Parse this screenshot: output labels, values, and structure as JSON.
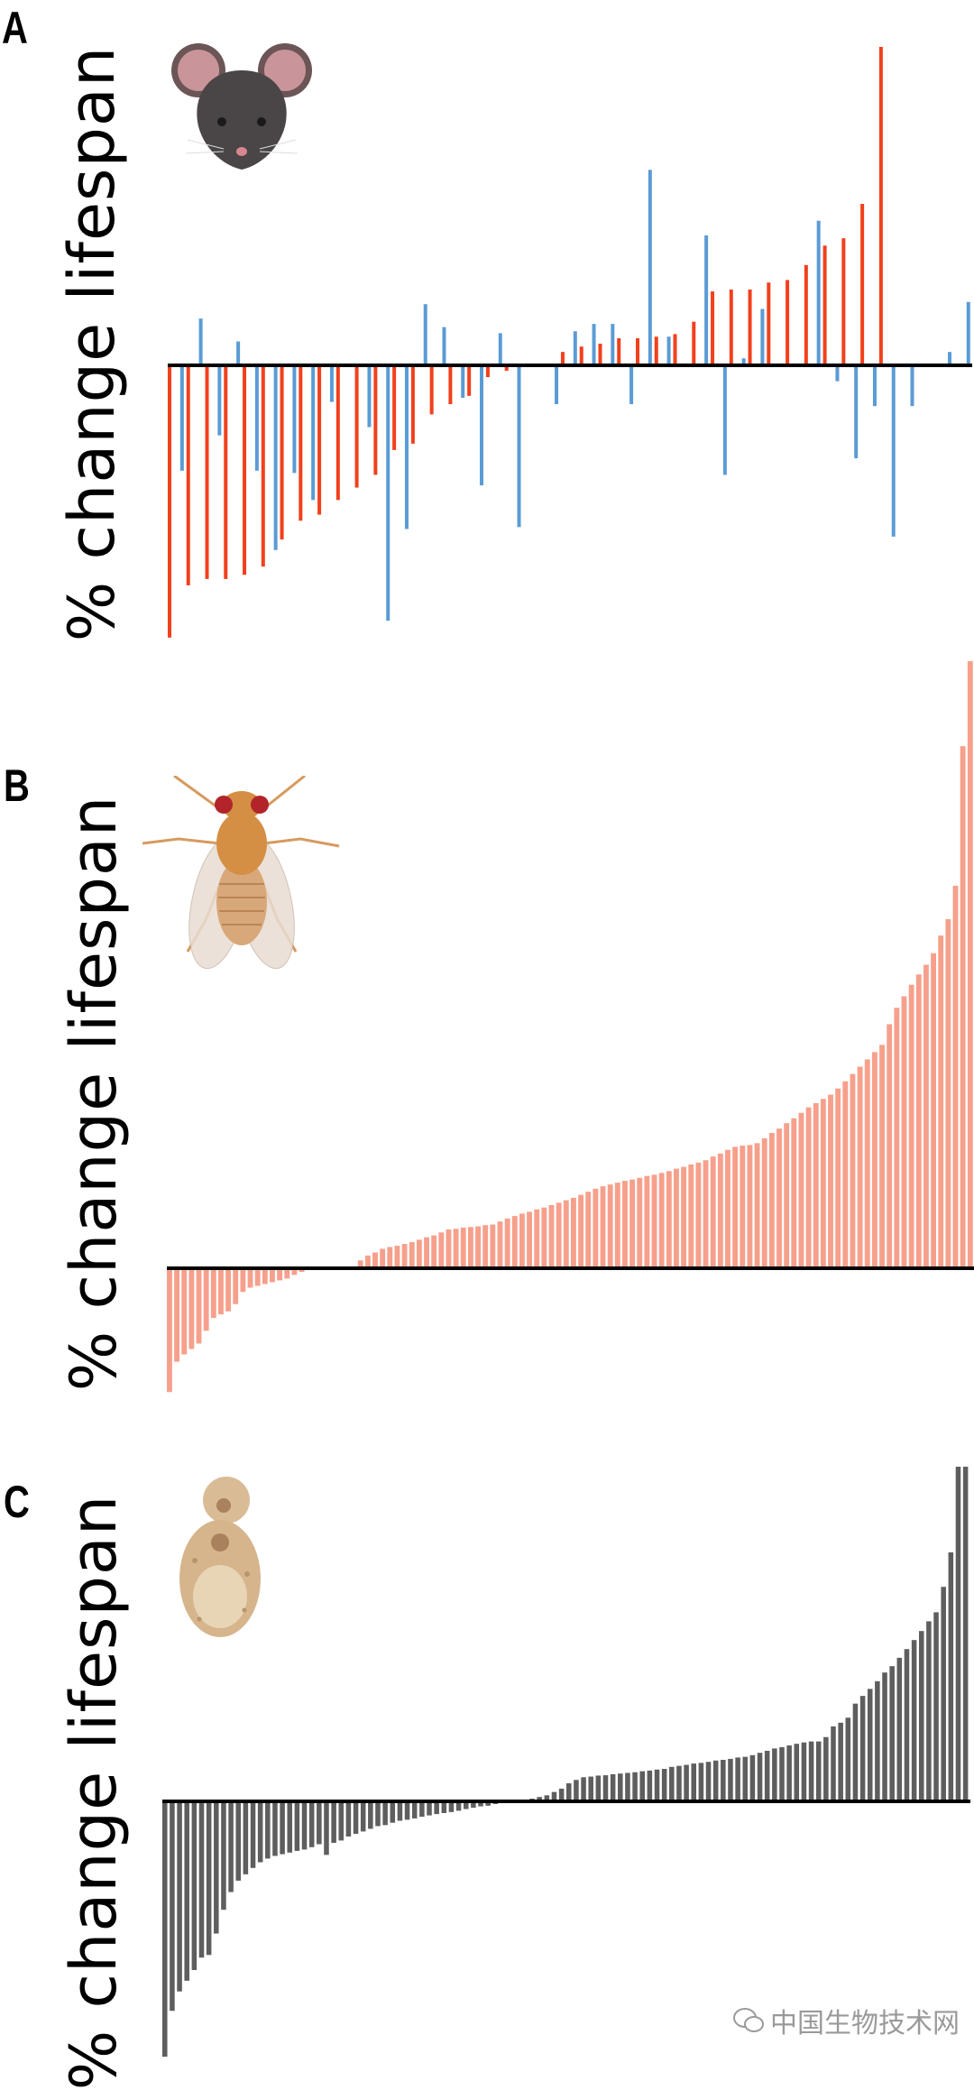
{
  "chart_data": [
    {
      "type": "bar",
      "panel": "A",
      "organism_icon": "mouse-icon",
      "ylabel": "% change lifespan",
      "xlabel": "",
      "units": "relative (no axis ticks shown; largest bar = 100)",
      "ylim": [
        -90,
        102
      ],
      "x_slots": 129,
      "colors": {
        "red": "#f2401c",
        "blue": "#5b9bd5"
      },
      "series": [
        {
          "name": "red",
          "color": "#f2401c",
          "points": [
            [
              0,
              -85.5
            ],
            [
              3,
              -69.1
            ],
            [
              6,
              -67.1
            ],
            [
              9,
              -67.1
            ],
            [
              12,
              -65.8
            ],
            [
              15,
              -63.2
            ],
            [
              18,
              -54.7
            ],
            [
              21,
              -48.8
            ],
            [
              24,
              -46.9
            ],
            [
              27,
              -42.3
            ],
            [
              30,
              -38.4
            ],
            [
              33,
              -34.4
            ],
            [
              36,
              -26.6
            ],
            [
              39,
              -24.6
            ],
            [
              42,
              -15.4
            ],
            [
              45,
              -12.2
            ],
            [
              48,
              -9.6
            ],
            [
              51,
              -3.7
            ],
            [
              54,
              -1.7
            ],
            [
              63,
              4.2
            ],
            [
              66,
              5.9
            ],
            [
              69,
              6.8
            ],
            [
              72,
              8.5
            ],
            [
              75,
              8.5
            ],
            [
              78,
              9.0
            ],
            [
              81,
              9.8
            ],
            [
              84,
              13.7
            ],
            [
              87,
              23.2
            ],
            [
              90,
              23.8
            ],
            [
              93,
              23.8
            ],
            [
              96,
              26.0
            ],
            [
              99,
              26.8
            ],
            [
              102,
              31.5
            ],
            [
              105,
              37.6
            ],
            [
              108,
              39.9
            ],
            [
              111,
              50.7
            ],
            [
              114,
              100
            ]
          ]
        },
        {
          "name": "blue",
          "color": "#5b9bd5",
          "points": [
            [
              2,
              -33.1
            ],
            [
              5,
              14.7
            ],
            [
              8,
              -22.0
            ],
            [
              11,
              7.5
            ],
            [
              14,
              -33.1
            ],
            [
              17,
              -58.0
            ],
            [
              20,
              -33.8
            ],
            [
              23,
              -42.3
            ],
            [
              26,
              -11.5
            ],
            [
              32,
              -19.4
            ],
            [
              35,
              -80.2
            ],
            [
              38,
              -51.4
            ],
            [
              41,
              19.2
            ],
            [
              44,
              12.0
            ],
            [
              47,
              -10.2
            ],
            [
              50,
              -37.7
            ],
            [
              53,
              10.1
            ],
            [
              56,
              -50.8
            ],
            [
              62,
              -12.2
            ],
            [
              65,
              10.7
            ],
            [
              68,
              13.0
            ],
            [
              71,
              13.0
            ],
            [
              74,
              -12.2
            ],
            [
              77,
              61.4
            ],
            [
              80,
              9.0
            ],
            [
              86,
              40.8
            ],
            [
              89,
              -34.4
            ],
            [
              92,
              2.2
            ],
            [
              95,
              17.7
            ],
            [
              104,
              45.4
            ],
            [
              107,
              -5.0
            ],
            [
              110,
              -29.2
            ],
            [
              113,
              -12.8
            ],
            [
              116,
              -53.8
            ],
            [
              119,
              -12.8
            ],
            [
              125,
              4.2
            ],
            [
              128,
              19.9
            ]
          ]
        }
      ],
      "label": "A"
    },
    {
      "type": "bar",
      "panel": "B",
      "organism_icon": "fly-icon",
      "ylabel": "% change lifespan",
      "xlabel": "",
      "units": "relative (no axis ticks shown; largest bar = 100)",
      "ylim": [
        -21,
        100
      ],
      "color": "#f6a08c",
      "label": "B",
      "values": [
        -20.4,
        -15.4,
        -14.2,
        -13.3,
        -12.4,
        -10.3,
        -8.2,
        -7.6,
        -7.1,
        -5.9,
        -3.9,
        -3.2,
        -2.9,
        -2.6,
        -2.3,
        -2.0,
        -1.7,
        -1.1,
        -0.6,
        0,
        0,
        0,
        0,
        0,
        0,
        0,
        1.3,
        2.1,
        2.6,
        3.2,
        3.5,
        3.7,
        4.0,
        4.3,
        4.7,
        5.1,
        5.4,
        5.9,
        6.4,
        6.5,
        6.7,
        6.8,
        6.9,
        7.1,
        7.2,
        7.7,
        8.2,
        8.6,
        9.0,
        9.3,
        9.7,
        10.0,
        10.4,
        10.8,
        11.2,
        11.6,
        12.1,
        12.6,
        13.1,
        13.5,
        13.8,
        14.1,
        14.4,
        14.6,
        14.9,
        15.2,
        15.4,
        15.7,
        16.0,
        16.4,
        16.7,
        17.1,
        17.4,
        17.8,
        18.4,
        18.9,
        19.5,
        20.0,
        20.2,
        20.3,
        20.6,
        21.4,
        22.3,
        23.0,
        23.9,
        24.7,
        25.6,
        26.5,
        27.2,
        27.9,
        28.6,
        29.6,
        30.8,
        32.0,
        33.2,
        34.4,
        35.6,
        36.8,
        40.2,
        42.9,
        44.8,
        46.7,
        48.4,
        50.0,
        51.9,
        54.8,
        57.5,
        63.0,
        86.0,
        100
      ]
    },
    {
      "type": "bar",
      "panel": "C",
      "organism_icon": "yeast-icon",
      "ylabel": "% change lifespan",
      "xlabel": "",
      "units": "relative (no axis ticks shown; largest bar = 100)",
      "ylim": [
        -77,
        100
      ],
      "color": "#5e5e5e",
      "label": "C",
      "values": [
        -76.3,
        -62.6,
        -56.8,
        -53.6,
        -50.4,
        -46.7,
        -45.9,
        -39.5,
        -32.4,
        -27.1,
        -23.7,
        -21.8,
        -19.9,
        -18.2,
        -17.1,
        -16.3,
        -15.8,
        -15.3,
        -14.8,
        -14.4,
        -13.7,
        -12.8,
        -16.0,
        -12.4,
        -11.7,
        -10.5,
        -9.7,
        -9.0,
        -8.2,
        -7.4,
        -7.1,
        -6.4,
        -5.8,
        -5.5,
        -5.1,
        -4.6,
        -4.2,
        -3.8,
        -3.5,
        -3.2,
        -2.8,
        -2.3,
        -1.9,
        -1.5,
        -1.3,
        -0.8,
        -0.5,
        -0.3,
        -0.1,
        0.1,
        0.8,
        1.3,
        1.8,
        2.8,
        3.8,
        5.4,
        6.4,
        7.2,
        7.4,
        7.7,
        7.8,
        8.1,
        8.3,
        8.5,
        8.7,
        9.0,
        9.2,
        9.5,
        9.7,
        10.3,
        10.6,
        10.9,
        11.3,
        11.5,
        11.8,
        12.2,
        12.4,
        12.7,
        13.1,
        13.3,
        13.8,
        14.5,
        15.1,
        15.8,
        16.2,
        16.7,
        17.2,
        17.6,
        17.9,
        17.9,
        19.2,
        22.4,
        23.5,
        25.0,
        29.2,
        31.5,
        33.6,
        35.9,
        38.5,
        40.4,
        42.9,
        45.5,
        48.2,
        50.9,
        53.8,
        56.5,
        64.1,
        74.4,
        100,
        100
      ]
    }
  ],
  "watermark": {
    "icon": "wechat-icon",
    "text": "中国生物技术网"
  }
}
